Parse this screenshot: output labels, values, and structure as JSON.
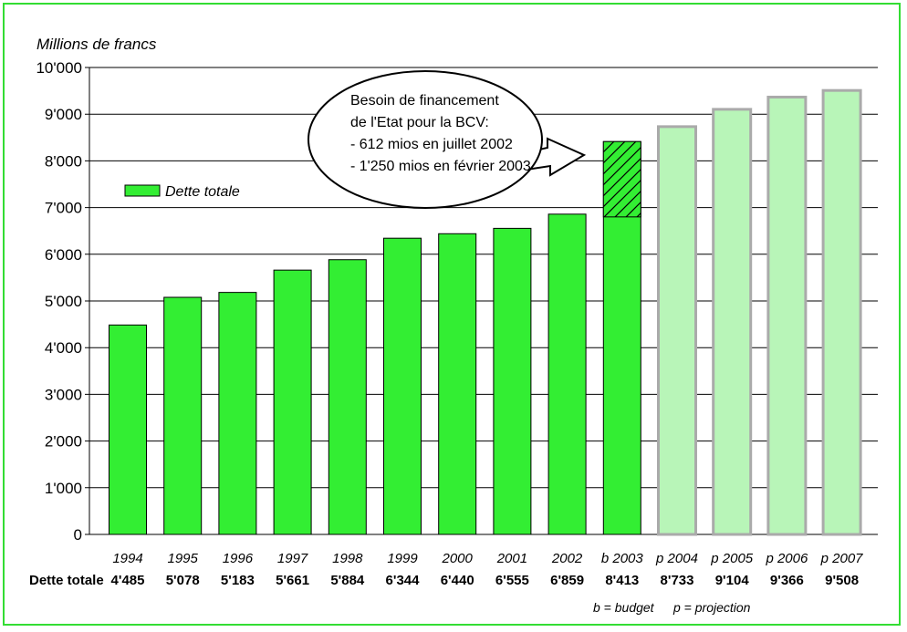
{
  "chart_data": {
    "type": "bar",
    "ylabel": "Millions de francs",
    "ylim": [
      0,
      10000
    ],
    "yticks": [
      "0",
      "1'000",
      "2'000",
      "3'000",
      "4'000",
      "5'000",
      "6'000",
      "7'000",
      "8'000",
      "9'000",
      "10'000"
    ],
    "grid": true,
    "categories": [
      "1994",
      "1995",
      "1996",
      "1997",
      "1998",
      "1999",
      "2000",
      "2001",
      "2002",
      "b 2003",
      "p 2004",
      "p 2005",
      "p 2006",
      "p 2007"
    ],
    "series": [
      {
        "name": "Dette totale",
        "values": [
          4485,
          5078,
          5183,
          5661,
          5884,
          6344,
          6440,
          6555,
          6859,
          8413,
          8733,
          9104,
          9366,
          9508
        ],
        "value_labels": [
          "4'485",
          "5'078",
          "5'183",
          "5'661",
          "5'884",
          "6'344",
          "6'440",
          "6'555",
          "6'859",
          "8'413",
          "8'733",
          "9'104",
          "9'366",
          "9'508"
        ],
        "kinds": [
          "actual",
          "actual",
          "actual",
          "actual",
          "actual",
          "actual",
          "actual",
          "actual",
          "actual",
          "budget",
          "projection",
          "projection",
          "projection",
          "projection"
        ]
      }
    ],
    "hatched_portion": {
      "category": "b 2003",
      "from": 6800,
      "to": 8413
    },
    "legend": {
      "label": "Dette totale",
      "position": "left"
    },
    "table_row_label": "Dette totale",
    "annotation": {
      "lines": [
        "Besoin de financement",
        "de l'Etat pour la BCV:",
        "- 612 mios en juillet 2002",
        "- 1'250 mios en février 2003"
      ]
    },
    "footnotes": [
      "b = budget",
      "p = projection"
    ],
    "colors": {
      "actual": "#33ee33",
      "projection": "#b8f5b8",
      "projection_border": "#aaaaaa",
      "frame": "#33dd33",
      "grid": "#000000"
    }
  }
}
